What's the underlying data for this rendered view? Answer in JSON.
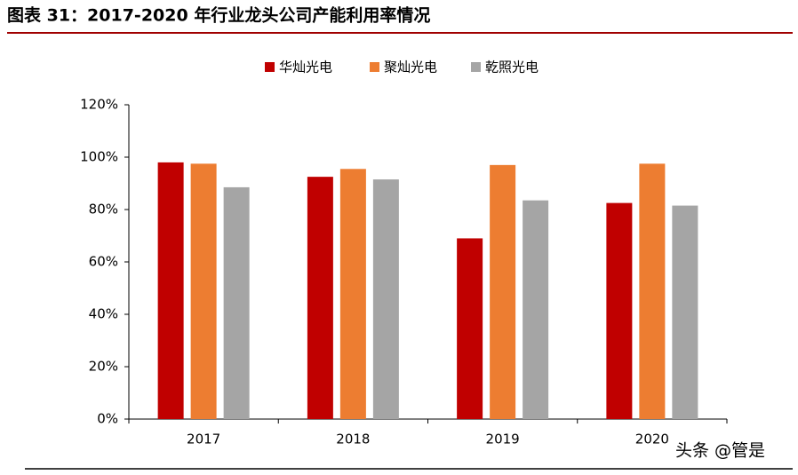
{
  "chart_data": {
    "type": "bar",
    "title": "图表 31：2017-2020 年行业龙头公司产能利用率情况",
    "watermark": "头条 @管是",
    "categories": [
      "2017",
      "2018",
      "2019",
      "2020"
    ],
    "series": [
      {
        "name": "华灿光电",
        "color": "#c00000",
        "values": [
          98,
          92.5,
          69,
          82.5
        ]
      },
      {
        "name": "聚灿光电",
        "color": "#ed7d31",
        "values": [
          97.5,
          95.5,
          97,
          97.5
        ]
      },
      {
        "name": "乾照光电",
        "color": "#a5a5a5",
        "values": [
          88.5,
          91.5,
          83.5,
          81.5
        ]
      }
    ],
    "ylim": [
      0,
      120
    ],
    "yticks": [
      {
        "value": 0,
        "label": "0%"
      },
      {
        "value": 20,
        "label": "20%"
      },
      {
        "value": 40,
        "label": "40%"
      },
      {
        "value": 60,
        "label": "60%"
      },
      {
        "value": 80,
        "label": "80%"
      },
      {
        "value": 100,
        "label": "100%"
      },
      {
        "value": 120,
        "label": "120%"
      }
    ],
    "legend": "top"
  }
}
